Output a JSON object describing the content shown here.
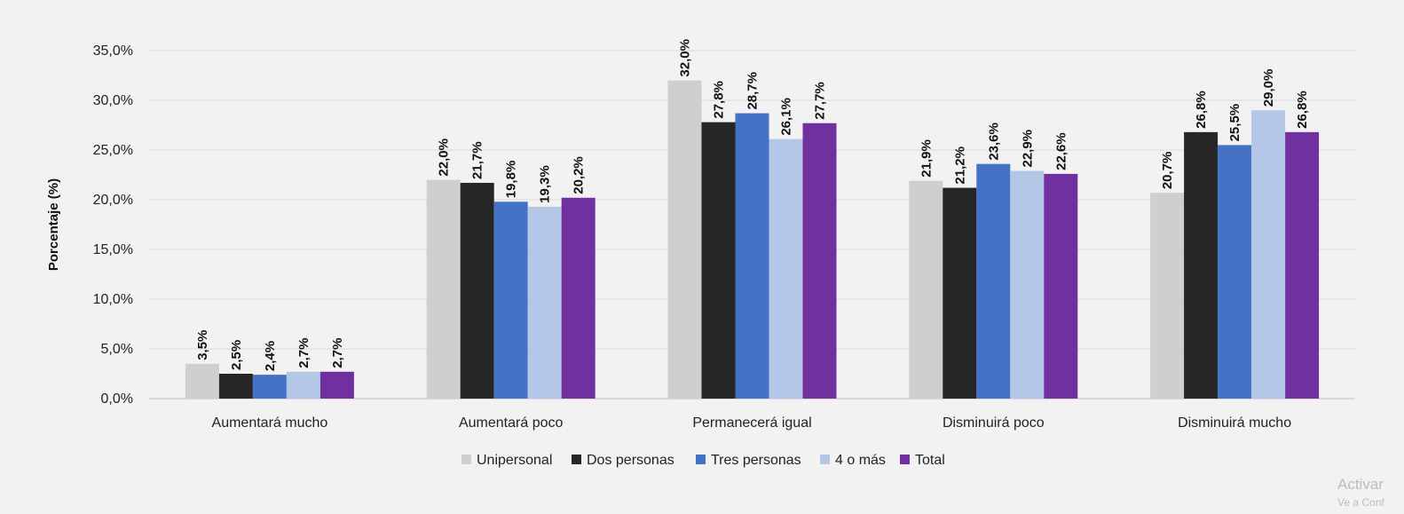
{
  "chart_data": {
    "type": "bar",
    "ylabel": "Porcentaje (%)",
    "ylim": [
      0,
      35
    ],
    "yticks": [
      "0,0%",
      "5,0%",
      "10,0%",
      "15,0%",
      "20,0%",
      "25,0%",
      "30,0%",
      "35,0%"
    ],
    "grid": true,
    "legend_position": "bottom",
    "categories": [
      "Aumentará mucho",
      "Aumentará poco",
      "Permanecerá igual",
      "Disminuirá poco",
      "Disminuirá mucho"
    ],
    "series": [
      {
        "name": "Unipersonal",
        "color": "#d0cece",
        "values": [
          3.5,
          22.0,
          32.0,
          21.9,
          20.7
        ],
        "labels": [
          "3,5%",
          "22,0%",
          "32,0%",
          "21,9%",
          "20,7%"
        ]
      },
      {
        "name": "Dos personas",
        "color": "#262626",
        "values": [
          2.5,
          21.7,
          27.8,
          21.2,
          26.8
        ],
        "labels": [
          "2,5%",
          "21,7%",
          "27,8%",
          "21,2%",
          "26,8%"
        ]
      },
      {
        "name": "Tres personas",
        "color": "#4472c4",
        "values": [
          2.4,
          19.8,
          28.7,
          23.6,
          25.5
        ],
        "labels": [
          "2,4%",
          "19,8%",
          "28,7%",
          "23,6%",
          "25,5%"
        ]
      },
      {
        "name": "4 o más",
        "color": "#b4c7e7",
        "values": [
          2.7,
          19.3,
          26.1,
          22.9,
          29.0
        ],
        "labels": [
          "2,7%",
          "19,3%",
          "26,1%",
          "22,9%",
          "29,0%"
        ]
      },
      {
        "name": "Total",
        "color": "#7030a0",
        "values": [
          2.7,
          20.2,
          27.7,
          22.6,
          26.8
        ],
        "labels": [
          "2,7%",
          "20,2%",
          "27,7%",
          "22,6%",
          "26,8%"
        ]
      }
    ]
  },
  "watermark": {
    "line1": "Activar",
    "line2": "Ve a Conf"
  }
}
